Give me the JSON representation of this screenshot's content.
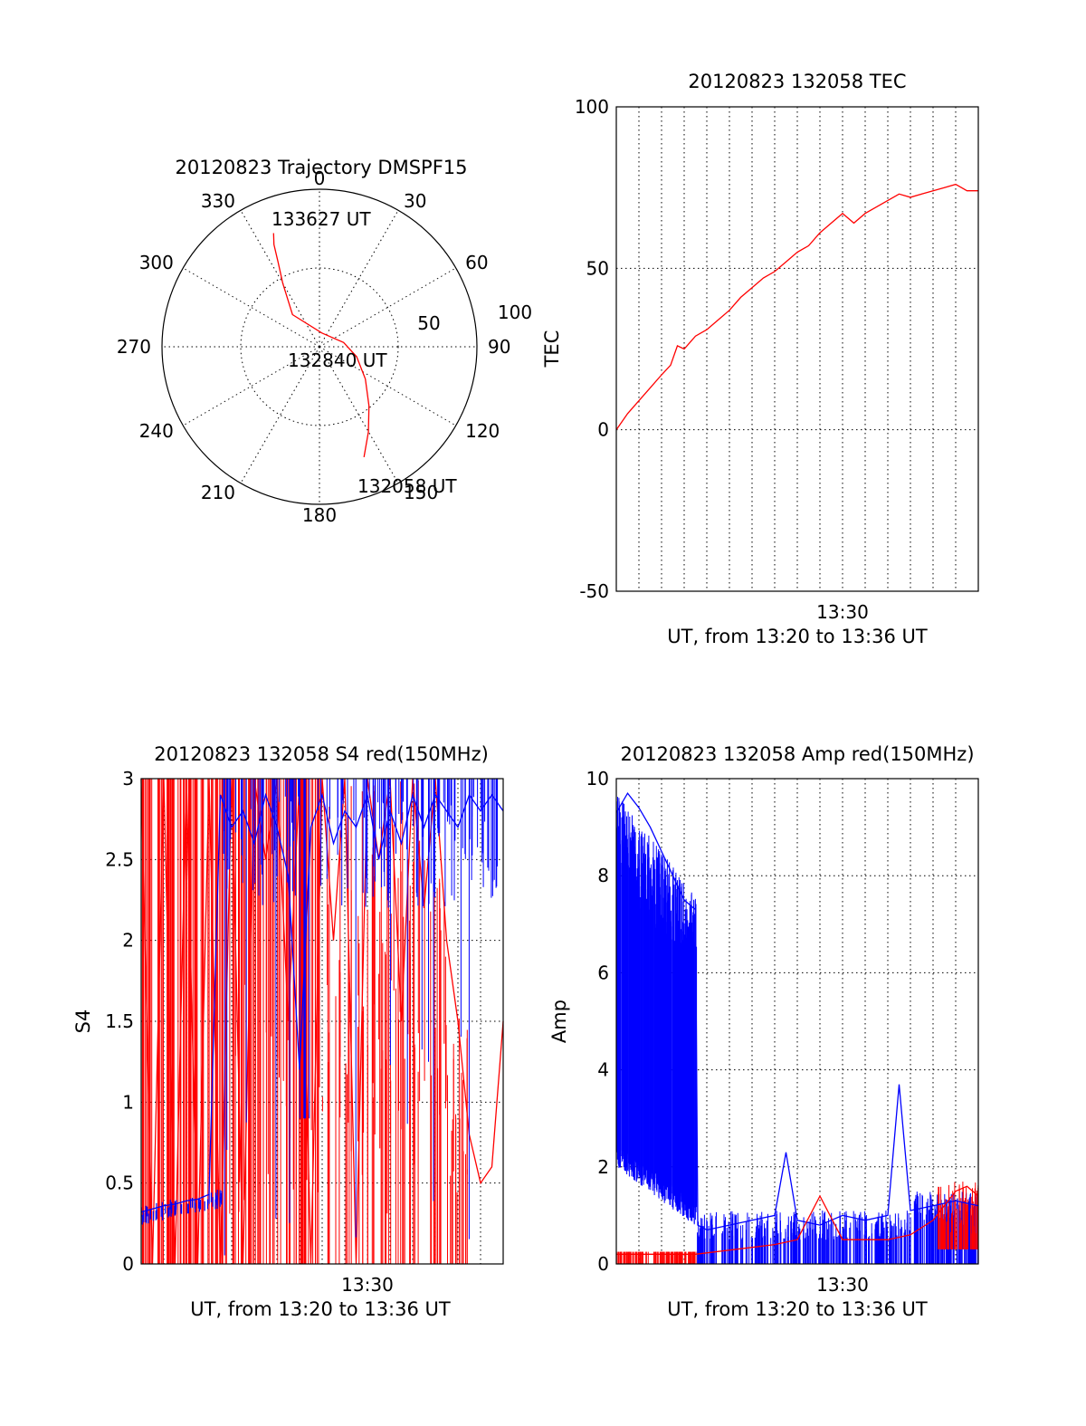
{
  "colors": {
    "red_series": "#ff0000",
    "blue_series": "#0000ff",
    "axes": "#000000",
    "background": "#ffffff"
  },
  "chart_data": [
    {
      "type": "polar",
      "title": "20120823 Trajectory DMSPF15",
      "azimuth_labels": [
        "0",
        "30",
        "60",
        "90",
        "120",
        "150",
        "180",
        "210",
        "240",
        "270",
        "300",
        "330"
      ],
      "radial_labels": [
        "50",
        "100"
      ],
      "zenith_angle_range": [
        0,
        90
      ],
      "grid": "dotted",
      "series": [
        {
          "color": "#ff0000",
          "points": [
            {
              "azimuth": 158,
              "elevation": 22
            },
            {
              "azimuth": 150,
              "elevation": 34
            },
            {
              "azimuth": 140,
              "elevation": 46
            },
            {
              "azimuth": 125,
              "elevation": 58
            },
            {
              "azimuth": 105,
              "elevation": 68
            },
            {
              "azimuth": 80,
              "elevation": 76
            },
            {
              "azimuth": 10,
              "elevation": 82
            },
            {
              "azimuth": 320,
              "elevation": 66
            },
            {
              "azimuth": 330,
              "elevation": 48
            },
            {
              "azimuth": 334,
              "elevation": 36
            },
            {
              "azimuth": 336,
              "elevation": 26
            },
            {
              "azimuth": 338,
              "elevation": 20
            }
          ]
        }
      ],
      "annotations": [
        "133627 UT",
        "132840 UT",
        "132058 UT"
      ]
    },
    {
      "type": "line",
      "title": "20120823 132058 TEC",
      "xlabel": "UT, from 13:20 to 13:36 UT",
      "ylabel": "TEC",
      "x_tick_labels": [
        "13:30"
      ],
      "x_unit": "minutes after 13:20 UT",
      "xlim": [
        0,
        16
      ],
      "ylim": [
        -50,
        100
      ],
      "y_ticks": [
        -50,
        0,
        50,
        100
      ],
      "grid": true,
      "series": [
        {
          "color": "#ff0000",
          "x": [
            0.0,
            0.5,
            1.0,
            1.5,
            2.0,
            2.4,
            2.7,
            3.0,
            3.5,
            4.0,
            4.5,
            5.0,
            5.5,
            6.0,
            6.5,
            7.0,
            7.5,
            8.0,
            8.5,
            9.0,
            9.5,
            10.0,
            10.5,
            11.0,
            11.5,
            12.0,
            12.5,
            13.0,
            13.5,
            14.0,
            14.5,
            15.0,
            15.5,
            16.0
          ],
          "values": [
            0,
            5,
            9,
            13,
            17,
            20,
            26,
            25,
            29,
            31,
            34,
            37,
            41,
            44,
            47,
            49,
            52,
            55,
            57,
            61,
            64,
            67,
            64,
            67,
            69,
            71,
            73,
            72,
            73,
            74,
            75,
            76,
            74,
            74
          ]
        }
      ]
    },
    {
      "type": "line",
      "title": "20120823 132058 S4 red(150MHz)",
      "xlabel": "UT, from 13:20 to 13:36 UT",
      "ylabel": "S4",
      "x_tick_labels": [
        "13:30"
      ],
      "x_unit": "minutes after 13:20 UT",
      "xlim": [
        0,
        16
      ],
      "ylim": [
        0,
        3
      ],
      "y_ticks": [
        "0",
        "0.5",
        "1",
        "1.5",
        "2",
        "2.5",
        "3"
      ],
      "grid": true,
      "series": [
        {
          "color": "#0000ff",
          "x": [
            0.0,
            0.5,
            1.0,
            1.5,
            2.0,
            2.5,
            3.0,
            3.5,
            4.0,
            4.5,
            5.0,
            5.5,
            6.0,
            6.5,
            7.0,
            7.5,
            8.0,
            8.5,
            9.0,
            9.5,
            10.0,
            10.5,
            11.0,
            11.5,
            12.0,
            12.5,
            13.0,
            13.5,
            14.0,
            14.5,
            15.0,
            15.5,
            16.0
          ],
          "values": [
            0.32,
            0.34,
            0.36,
            0.37,
            0.39,
            0.4,
            0.43,
            2.9,
            2.7,
            2.8,
            2.6,
            2.9,
            2.7,
            2.4,
            1.2,
            2.7,
            2.9,
            2.6,
            2.8,
            2.7,
            2.9,
            2.5,
            2.8,
            2.6,
            2.9,
            2.7,
            2.9,
            2.8,
            2.7,
            2.9,
            2.8,
            2.9,
            2.8
          ]
        },
        {
          "color": "#ff0000",
          "x": [
            0.0,
            0.5,
            1.0,
            1.5,
            2.0,
            2.5,
            3.0,
            3.5,
            4.0,
            4.5,
            5.0,
            5.5,
            6.0,
            6.5,
            7.0,
            7.5,
            8.0,
            8.5,
            9.0,
            9.5,
            10.0,
            10.5,
            11.0,
            11.5,
            12.0,
            12.5,
            13.0,
            13.5,
            14.0,
            14.5,
            15.0,
            15.5,
            16.0
          ],
          "values": [
            3,
            0,
            3,
            0,
            3,
            0,
            3,
            0,
            3,
            0,
            3,
            2.5,
            3,
            1.5,
            3,
            0,
            3,
            2.0,
            3,
            0,
            3,
            2.5,
            3,
            1.5,
            3,
            2.2,
            3,
            2.0,
            1.5,
            0.8,
            0.5,
            0.6,
            1.5
          ]
        }
      ]
    },
    {
      "type": "line",
      "title": "20120823 132058 Amp red(150MHz)",
      "xlabel": "UT, from 13:20 to 13:36 UT",
      "ylabel": "Amp",
      "x_tick_labels": [
        "13:30"
      ],
      "x_unit": "minutes after 13:20 UT",
      "xlim": [
        0,
        16
      ],
      "ylim": [
        0,
        10
      ],
      "y_ticks": [
        0,
        2,
        4,
        6,
        8,
        10
      ],
      "grid": true,
      "series": [
        {
          "color": "#0000ff",
          "x": [
            0.0,
            0.5,
            1.0,
            1.5,
            2.0,
            2.5,
            3.0,
            3.5,
            3.6,
            4.0,
            5.0,
            6.0,
            7.0,
            7.5,
            8.0,
            9.0,
            10.0,
            11.0,
            12.0,
            12.5,
            13.0,
            14.0,
            15.0,
            16.0
          ],
          "values": [
            9.3,
            9.7,
            9.4,
            9.0,
            8.5,
            8.0,
            7.5,
            7.3,
            0.8,
            0.7,
            0.8,
            0.9,
            1.0,
            2.3,
            0.9,
            0.8,
            1.0,
            0.9,
            1.0,
            3.7,
            1.1,
            1.2,
            1.3,
            1.2
          ]
        },
        {
          "color": "#ff0000",
          "x": [
            0.0,
            1.0,
            2.0,
            3.0,
            3.5,
            7.0,
            8.0,
            9.0,
            10.0,
            11.0,
            12.0,
            13.0,
            14.0,
            14.5,
            15.0,
            15.5,
            16.0
          ],
          "values": [
            0.2,
            0.2,
            0.2,
            0.2,
            0.2,
            0.4,
            0.5,
            1.4,
            0.5,
            0.5,
            0.5,
            0.6,
            0.9,
            1.2,
            1.5,
            1.6,
            1.4
          ]
        }
      ]
    }
  ]
}
